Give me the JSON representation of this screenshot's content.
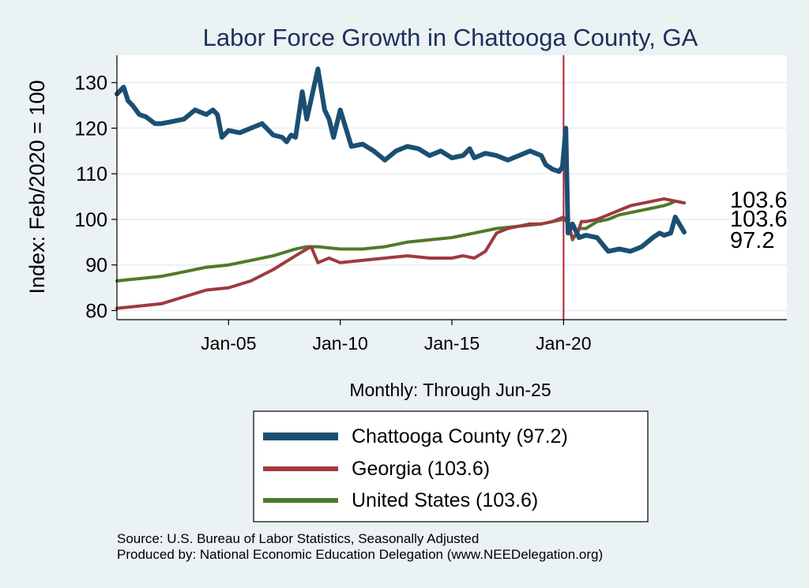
{
  "chart_data": {
    "type": "line",
    "title": "Labor Force Growth in Chattooga  County, GA",
    "xlabel": "Monthly: Through Jun-25",
    "ylabel": "Index: Feb/2020 = 100",
    "xlim": [
      2000.0,
      2030.0
    ],
    "ylim": [
      78,
      136
    ],
    "yticks": [
      80,
      90,
      100,
      110,
      120,
      130
    ],
    "xticks": [
      {
        "x": 2005.0,
        "label": "Jan-05"
      },
      {
        "x": 2010.0,
        "label": "Jan-10"
      },
      {
        "x": 2015.0,
        "label": "Jan-15"
      },
      {
        "x": 2020.0,
        "label": "Jan-20"
      }
    ],
    "vline_x": 2020.0,
    "series": [
      {
        "name": "Chattooga  County",
        "legend": "Chattooga  County (97.2)",
        "end_label": "97.2",
        "color": "#1b4f72",
        "width": 6,
        "x": [
          2000.0,
          2000.3,
          2000.5,
          2000.7,
          2001.0,
          2001.3,
          2001.7,
          2002.0,
          2002.5,
          2003.0,
          2003.5,
          2004.0,
          2004.3,
          2004.5,
          2004.7,
          2005.0,
          2005.5,
          2006.0,
          2006.5,
          2007.0,
          2007.4,
          2007.6,
          2007.8,
          2008.0,
          2008.3,
          2008.5,
          2009.0,
          2009.3,
          2009.5,
          2009.7,
          2010.0,
          2010.5,
          2011.0,
          2011.5,
          2012.0,
          2012.5,
          2013.0,
          2013.5,
          2014.0,
          2014.5,
          2015.0,
          2015.5,
          2015.8,
          2016.0,
          2016.5,
          2017.0,
          2017.5,
          2018.0,
          2018.5,
          2019.0,
          2019.2,
          2019.5,
          2019.8,
          2019.95,
          2020.1,
          2020.2,
          2020.4,
          2020.7,
          2021.0,
          2021.5,
          2022.0,
          2022.5,
          2023.0,
          2023.5,
          2024.0,
          2024.3,
          2024.5,
          2024.8,
          2025.0,
          2025.4
        ],
        "y": [
          127.5,
          129.0,
          126.0,
          125.0,
          123.0,
          122.5,
          121.0,
          121.0,
          121.5,
          122.0,
          124.0,
          123.0,
          124.0,
          123.0,
          118.0,
          119.5,
          119.0,
          120.0,
          121.0,
          118.5,
          118.0,
          117.0,
          118.5,
          118.0,
          128.0,
          122.0,
          133.0,
          124.0,
          122.0,
          118.0,
          124.0,
          116.0,
          116.5,
          115.0,
          113.0,
          115.0,
          116.0,
          115.5,
          114.0,
          115.0,
          113.5,
          114.0,
          115.5,
          113.5,
          114.5,
          114.0,
          113.0,
          114.0,
          115.0,
          114.0,
          112.0,
          111.0,
          110.5,
          111.5,
          120.0,
          97.0,
          99.0,
          96.0,
          96.5,
          96.0,
          93.0,
          93.5,
          93.0,
          94.0,
          96.0,
          97.0,
          96.5,
          97.0,
          100.5,
          97.2
        ]
      },
      {
        "name": "Georgia",
        "legend": "Georgia (103.6)",
        "end_label": "103.6",
        "color": "#9e3a3f",
        "width": 4,
        "x": [
          2000.0,
          2001.0,
          2002.0,
          2003.0,
          2004.0,
          2005.0,
          2006.0,
          2007.0,
          2008.0,
          2008.5,
          2008.7,
          2009.0,
          2009.5,
          2010.0,
          2011.0,
          2012.0,
          2013.0,
          2014.0,
          2015.0,
          2015.5,
          2016.0,
          2016.5,
          2017.0,
          2017.5,
          2018.0,
          2018.5,
          2019.0,
          2019.5,
          2020.0,
          2020.2,
          2020.4,
          2020.6,
          2020.8,
          2021.0,
          2021.5,
          2022.0,
          2022.5,
          2023.0,
          2023.5,
          2024.0,
          2024.5,
          2025.0,
          2025.4
        ],
        "y": [
          80.5,
          81.0,
          81.5,
          83.0,
          84.5,
          85.0,
          86.5,
          89.0,
          92.0,
          93.5,
          94.0,
          90.5,
          91.5,
          90.5,
          91.0,
          91.5,
          92.0,
          91.5,
          91.5,
          92.0,
          91.5,
          93.0,
          97.0,
          98.0,
          98.5,
          99.0,
          99.0,
          99.5,
          100.5,
          99.0,
          96.0,
          96.5,
          99.5,
          99.5,
          100.0,
          101.0,
          102.0,
          103.0,
          103.5,
          104.0,
          104.5,
          104.0,
          103.6
        ]
      },
      {
        "name": "United States",
        "legend": "United States (103.6)",
        "end_label": "103.6",
        "color": "#4e7a2a",
        "width": 4,
        "x": [
          2000.0,
          2001.0,
          2002.0,
          2003.0,
          2004.0,
          2005.0,
          2006.0,
          2007.0,
          2008.0,
          2008.5,
          2009.0,
          2010.0,
          2011.0,
          2012.0,
          2013.0,
          2014.0,
          2015.0,
          2016.0,
          2017.0,
          2018.0,
          2019.0,
          2019.5,
          2020.0,
          2020.2,
          2020.4,
          2020.7,
          2021.0,
          2021.5,
          2022.0,
          2022.5,
          2023.0,
          2023.5,
          2024.0,
          2024.5,
          2024.8,
          2025.0,
          2025.4
        ],
        "y": [
          86.5,
          87.0,
          87.5,
          88.5,
          89.5,
          90.0,
          91.0,
          92.0,
          93.5,
          94.0,
          94.0,
          93.5,
          93.5,
          94.0,
          95.0,
          95.5,
          96.0,
          97.0,
          98.0,
          98.5,
          99.0,
          99.5,
          100.0,
          99.5,
          95.5,
          98.0,
          98.0,
          99.5,
          100.0,
          101.0,
          101.5,
          102.0,
          102.5,
          103.0,
          103.5,
          104.0,
          103.6
        ]
      }
    ]
  },
  "notes": {
    "source": "Source: U.S. Bureau of Labor Statistics, Seasonally Adjusted",
    "produced": "Produced by: National Economic Education Delegation (www.NEEDelegation.org)"
  }
}
